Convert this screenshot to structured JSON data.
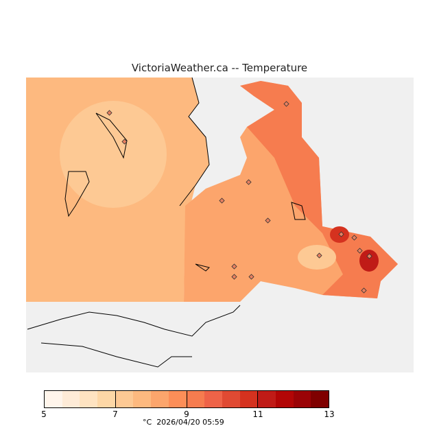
{
  "title": "VictoriaWeather.ca -- Temperature",
  "legend": {
    "unit": "°C",
    "timestamp": "2026/04/20 05:59",
    "ticks": [
      "5",
      "7",
      "9",
      "11",
      "13"
    ],
    "range": [
      5,
      13
    ],
    "colors": [
      "#fff5eb",
      "#feebd7",
      "#fee3c1",
      "#fdd7a6",
      "#fdc994",
      "#fdb97f",
      "#fca56c",
      "#fc8e58",
      "#f67c4f",
      "#ee6348",
      "#e04a33",
      "#d5321f",
      "#c01b17",
      "#b20606",
      "#9a0306",
      "#7f0000"
    ]
  }
}
